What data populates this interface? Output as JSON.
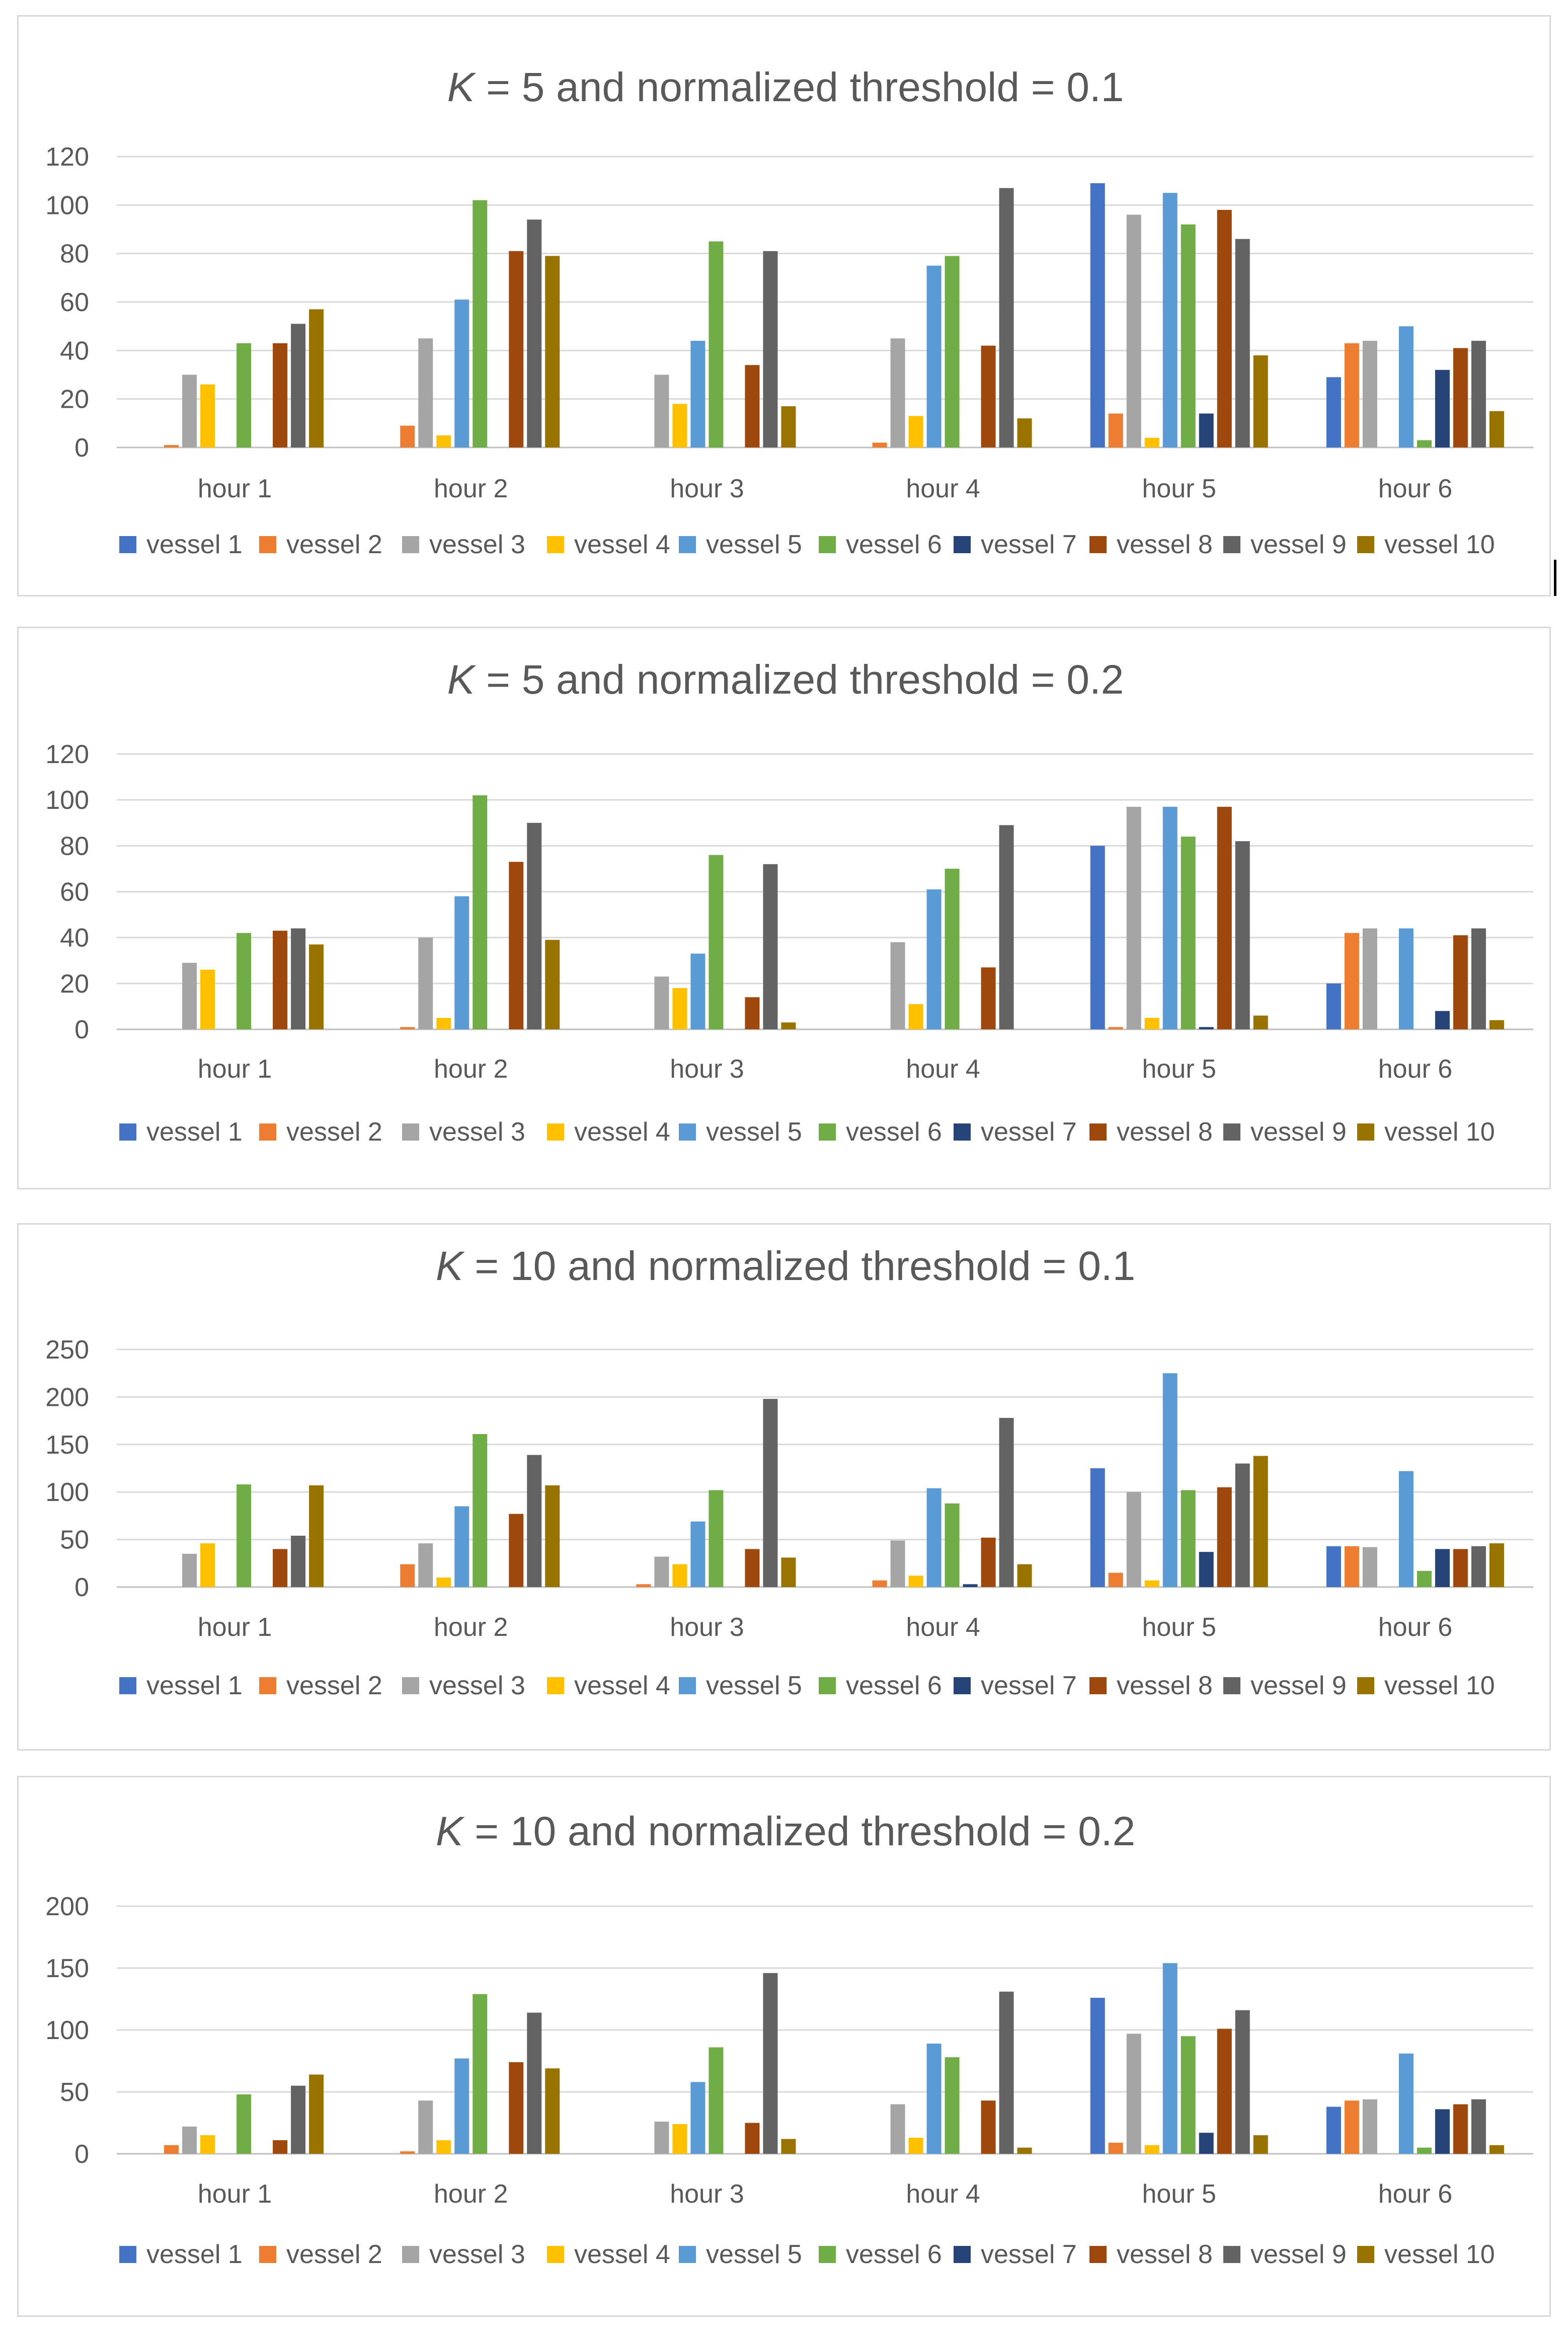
{
  "figure": {
    "categories": [
      "hour 1",
      "hour 2",
      "hour 3",
      "hour 4",
      "hour 5",
      "hour 6"
    ],
    "series_names": [
      "vessel 1",
      "vessel 2",
      "vessel 3",
      "vessel 4",
      "vessel 5",
      "vessel 6",
      "vessel 7",
      "vessel 8",
      "vessel 9",
      "vessel 10"
    ],
    "series_colors": [
      "#4472c4",
      "#ed7d31",
      "#a5a5a5",
      "#ffc000",
      "#5b9bd5",
      "#70ad47",
      "#264478",
      "#9e480e",
      "#636363",
      "#997300"
    ]
  },
  "chart_data": [
    {
      "type": "bar",
      "title_var": "K",
      "title_rest": " = 5 and normalized threshold = 0.1",
      "ylim": [
        0,
        120
      ],
      "yticks": [
        0,
        20,
        40,
        60,
        80,
        100,
        120
      ],
      "categories": [
        "hour 1",
        "hour 2",
        "hour 3",
        "hour 4",
        "hour 5",
        "hour 6"
      ],
      "series": [
        {
          "name": "vessel 1",
          "values": [
            0,
            0,
            0,
            0,
            109,
            29
          ]
        },
        {
          "name": "vessel 2",
          "values": [
            1,
            9,
            0,
            2,
            14,
            43
          ]
        },
        {
          "name": "vessel 3",
          "values": [
            30,
            45,
            30,
            45,
            96,
            44
          ]
        },
        {
          "name": "vessel 4",
          "values": [
            26,
            5,
            18,
            13,
            4,
            0
          ]
        },
        {
          "name": "vessel 5",
          "values": [
            0,
            61,
            44,
            75,
            105,
            50
          ]
        },
        {
          "name": "vessel 6",
          "values": [
            43,
            102,
            85,
            79,
            92,
            3
          ]
        },
        {
          "name": "vessel 7",
          "values": [
            0,
            0,
            0,
            0,
            14,
            32
          ]
        },
        {
          "name": "vessel 8",
          "values": [
            43,
            81,
            34,
            42,
            98,
            41
          ]
        },
        {
          "name": "vessel 9",
          "values": [
            51,
            94,
            81,
            107,
            86,
            44
          ]
        },
        {
          "name": "vessel 10",
          "values": [
            57,
            79,
            17,
            12,
            38,
            15
          ]
        }
      ]
    },
    {
      "type": "bar",
      "title_var": "K",
      "title_rest": "  = 5 and normalized threshold = 0.2",
      "ylim": [
        0,
        120
      ],
      "yticks": [
        0,
        20,
        40,
        60,
        80,
        100,
        120
      ],
      "categories": [
        "hour 1",
        "hour 2",
        "hour 3",
        "hour 4",
        "hour 5",
        "hour 6"
      ],
      "series": [
        {
          "name": "vessel 1",
          "values": [
            0,
            0,
            0,
            0,
            80,
            20
          ]
        },
        {
          "name": "vessel 2",
          "values": [
            0,
            1,
            0,
            0,
            1,
            42
          ]
        },
        {
          "name": "vessel 3",
          "values": [
            29,
            40,
            23,
            38,
            97,
            44
          ]
        },
        {
          "name": "vessel 4",
          "values": [
            26,
            5,
            18,
            11,
            5,
            0
          ]
        },
        {
          "name": "vessel 5",
          "values": [
            0,
            58,
            33,
            61,
            97,
            44
          ]
        },
        {
          "name": "vessel 6",
          "values": [
            42,
            102,
            76,
            70,
            84,
            0
          ]
        },
        {
          "name": "vessel 7",
          "values": [
            0,
            0,
            0,
            0,
            1,
            8
          ]
        },
        {
          "name": "vessel 8",
          "values": [
            43,
            73,
            14,
            27,
            97,
            41
          ]
        },
        {
          "name": "vessel 9",
          "values": [
            44,
            90,
            72,
            89,
            82,
            44
          ]
        },
        {
          "name": "vessel 10",
          "values": [
            37,
            39,
            3,
            0,
            6,
            4
          ]
        }
      ]
    },
    {
      "type": "bar",
      "title_var": "K",
      "title_rest": " = 10 and normalized threshold = 0.1",
      "ylim": [
        0,
        250
      ],
      "yticks": [
        0,
        50,
        100,
        150,
        200,
        250
      ],
      "categories": [
        "hour 1",
        "hour 2",
        "hour 3",
        "hour 4",
        "hour 5",
        "hour 6"
      ],
      "series": [
        {
          "name": "vessel 1",
          "values": [
            0,
            0,
            0,
            0,
            125,
            43
          ]
        },
        {
          "name": "vessel 2",
          "values": [
            0,
            24,
            3,
            7,
            15,
            43
          ]
        },
        {
          "name": "vessel 3",
          "values": [
            35,
            46,
            32,
            49,
            100,
            42
          ]
        },
        {
          "name": "vessel 4",
          "values": [
            46,
            10,
            24,
            12,
            7,
            0
          ]
        },
        {
          "name": "vessel 5",
          "values": [
            0,
            85,
            69,
            104,
            225,
            122
          ]
        },
        {
          "name": "vessel 6",
          "values": [
            108,
            161,
            102,
            88,
            102,
            17
          ]
        },
        {
          "name": "vessel 7",
          "values": [
            0,
            0,
            0,
            3,
            37,
            40
          ]
        },
        {
          "name": "vessel 8",
          "values": [
            40,
            77,
            40,
            52,
            105,
            40
          ]
        },
        {
          "name": "vessel 9",
          "values": [
            54,
            139,
            198,
            178,
            130,
            43
          ]
        },
        {
          "name": "vessel 10",
          "values": [
            107,
            107,
            31,
            24,
            138,
            46
          ]
        }
      ]
    },
    {
      "type": "bar",
      "title_var": "K",
      "title_rest": " = 10 and normalized threshold = 0.2",
      "ylim": [
        0,
        200
      ],
      "yticks": [
        0,
        50,
        100,
        150,
        200
      ],
      "categories": [
        "hour 1",
        "hour 2",
        "hour 3",
        "hour 4",
        "hour 5",
        "hour 6"
      ],
      "series": [
        {
          "name": "vessel 1",
          "values": [
            0,
            0,
            0,
            0,
            126,
            38
          ]
        },
        {
          "name": "vessel 2",
          "values": [
            7,
            2,
            0,
            0,
            9,
            43
          ]
        },
        {
          "name": "vessel 3",
          "values": [
            22,
            43,
            26,
            40,
            97,
            44
          ]
        },
        {
          "name": "vessel 4",
          "values": [
            15,
            11,
            24,
            13,
            7,
            0
          ]
        },
        {
          "name": "vessel 5",
          "values": [
            0,
            77,
            58,
            89,
            154,
            81
          ]
        },
        {
          "name": "vessel 6",
          "values": [
            48,
            129,
            86,
            78,
            95,
            5
          ]
        },
        {
          "name": "vessel 7",
          "values": [
            0,
            0,
            0,
            0,
            17,
            36
          ]
        },
        {
          "name": "vessel 8",
          "values": [
            11,
            74,
            25,
            43,
            101,
            40
          ]
        },
        {
          "name": "vessel 9",
          "values": [
            55,
            114,
            146,
            131,
            116,
            44
          ]
        },
        {
          "name": "vessel 10",
          "values": [
            64,
            69,
            12,
            5,
            15,
            7
          ]
        }
      ]
    }
  ]
}
